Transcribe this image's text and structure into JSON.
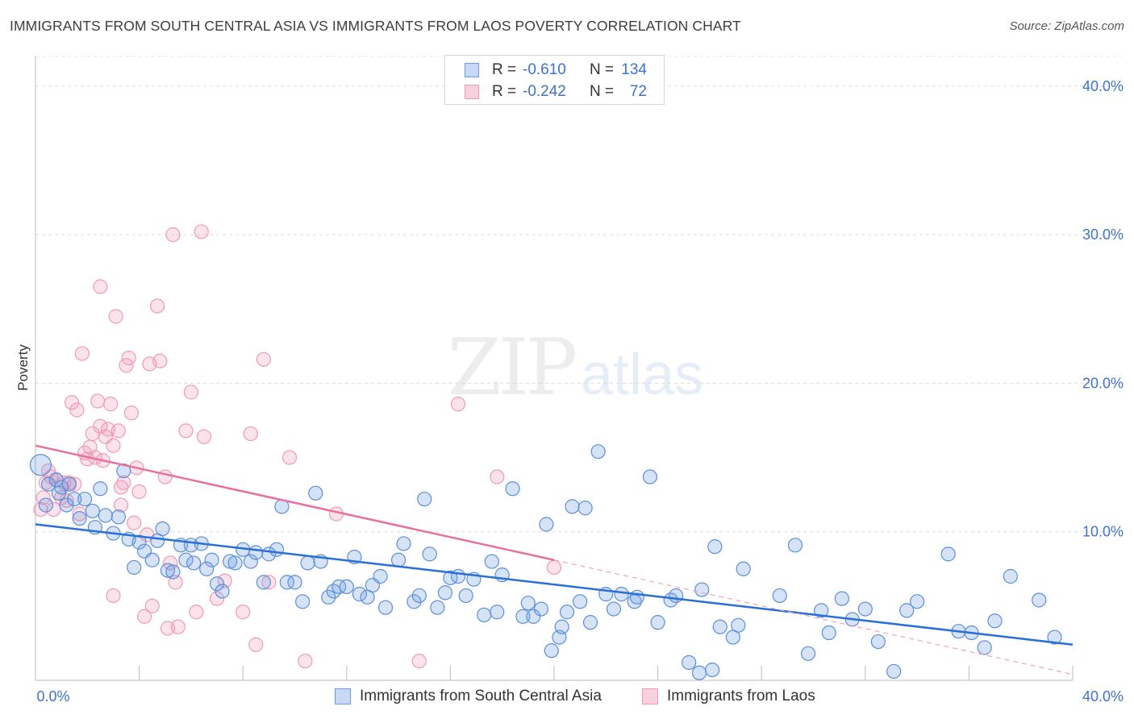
{
  "title": "IMMIGRANTS FROM SOUTH CENTRAL ASIA VS IMMIGRANTS FROM LAOS POVERTY CORRELATION CHART",
  "source": "Source: ZipAtlas.com",
  "watermark": {
    "zip": "ZIP",
    "atlas": "atlas"
  },
  "legend_top": [
    {
      "r_label": "R =",
      "r_value": "-0.610",
      "n_label": "N =",
      "n_value": "134",
      "color": "#6a9be0"
    },
    {
      "r_label": "R =",
      "r_value": "-0.242",
      "n_label": "N =",
      "n_value": "72",
      "color": "#f09ab8"
    }
  ],
  "legend_bottom": [
    {
      "label": "Immigrants from South Central Asia",
      "color": "#6a9be0"
    },
    {
      "label": "Immigrants from Laos",
      "color": "#f09ab8"
    }
  ],
  "chart_data": {
    "type": "scatter",
    "title": "IMMIGRANTS FROM SOUTH CENTRAL ASIA VS IMMIGRANTS FROM LAOS POVERTY CORRELATION CHART",
    "xlabel": "",
    "ylabel": "Poverty",
    "xlim": [
      0,
      40
    ],
    "ylim": [
      0,
      42
    ],
    "x_tick_labels": [
      "0.0%",
      "40.0%"
    ],
    "y_ticks": [
      10,
      20,
      30,
      40
    ],
    "y_tick_labels": [
      "10.0%",
      "20.0%",
      "30.0%",
      "40.0%"
    ],
    "grid": true,
    "legend_position": "top-center",
    "series": [
      {
        "name": "Immigrants from South Central Asia",
        "color": "#6a9be0",
        "trend": {
          "x": [
            0,
            40
          ],
          "y": [
            10.5,
            2.4
          ],
          "style": "solid"
        },
        "points": [
          [
            0.2,
            14.5
          ],
          [
            0.5,
            13.2
          ],
          [
            0.8,
            13.5
          ],
          [
            1.0,
            13.0
          ],
          [
            1.3,
            13.2
          ],
          [
            1.2,
            11.8
          ],
          [
            1.7,
            10.9
          ],
          [
            1.9,
            12.2
          ],
          [
            2.2,
            11.4
          ],
          [
            2.3,
            10.3
          ],
          [
            2.5,
            12.9
          ],
          [
            2.7,
            11.1
          ],
          [
            3.0,
            9.9
          ],
          [
            3.2,
            11.0
          ],
          [
            3.4,
            14.1
          ],
          [
            3.6,
            9.5
          ],
          [
            3.8,
            7.6
          ],
          [
            4.0,
            9.3
          ],
          [
            4.2,
            8.7
          ],
          [
            4.5,
            8.1
          ],
          [
            4.7,
            9.4
          ],
          [
            4.9,
            10.2
          ],
          [
            5.1,
            7.4
          ],
          [
            5.3,
            7.3
          ],
          [
            5.6,
            9.1
          ],
          [
            5.8,
            8.1
          ],
          [
            6.0,
            9.1
          ],
          [
            6.1,
            7.9
          ],
          [
            6.4,
            9.2
          ],
          [
            6.6,
            7.5
          ],
          [
            6.8,
            8.1
          ],
          [
            7.0,
            6.5
          ],
          [
            7.2,
            6.0
          ],
          [
            7.5,
            8.0
          ],
          [
            7.7,
            7.9
          ],
          [
            8.0,
            8.8
          ],
          [
            8.3,
            8.0
          ],
          [
            8.5,
            8.6
          ],
          [
            8.8,
            6.6
          ],
          [
            9.0,
            8.5
          ],
          [
            9.3,
            8.8
          ],
          [
            9.5,
            11.7
          ],
          [
            9.7,
            6.6
          ],
          [
            10.0,
            6.6
          ],
          [
            10.3,
            5.3
          ],
          [
            10.5,
            7.9
          ],
          [
            10.8,
            12.6
          ],
          [
            11.0,
            8.0
          ],
          [
            11.3,
            5.6
          ],
          [
            11.5,
            6.0
          ],
          [
            11.7,
            6.3
          ],
          [
            12.0,
            6.3
          ],
          [
            12.3,
            8.3
          ],
          [
            12.5,
            5.8
          ],
          [
            12.8,
            5.6
          ],
          [
            13.0,
            6.4
          ],
          [
            13.3,
            7.0
          ],
          [
            13.5,
            4.9
          ],
          [
            14.0,
            8.1
          ],
          [
            14.2,
            9.2
          ],
          [
            14.6,
            5.3
          ],
          [
            14.8,
            5.7
          ],
          [
            15.0,
            12.2
          ],
          [
            15.2,
            8.5
          ],
          [
            15.5,
            4.9
          ],
          [
            15.8,
            5.9
          ],
          [
            16.0,
            6.9
          ],
          [
            16.3,
            7.0
          ],
          [
            16.6,
            5.7
          ],
          [
            16.9,
            6.8
          ],
          [
            17.3,
            4.4
          ],
          [
            17.6,
            8.0
          ],
          [
            17.8,
            4.6
          ],
          [
            18.0,
            7.1
          ],
          [
            18.4,
            12.9
          ],
          [
            18.8,
            4.3
          ],
          [
            19.0,
            5.2
          ],
          [
            19.2,
            4.3
          ],
          [
            19.5,
            4.8
          ],
          [
            19.7,
            10.5
          ],
          [
            19.9,
            2.0
          ],
          [
            20.2,
            2.9
          ],
          [
            20.3,
            3.6
          ],
          [
            20.5,
            4.6
          ],
          [
            20.7,
            11.7
          ],
          [
            21.0,
            5.3
          ],
          [
            21.2,
            11.6
          ],
          [
            21.4,
            3.9
          ],
          [
            21.7,
            15.4
          ],
          [
            22.0,
            5.8
          ],
          [
            22.3,
            4.8
          ],
          [
            22.6,
            5.8
          ],
          [
            23.1,
            5.3
          ],
          [
            23.7,
            13.7
          ],
          [
            24.0,
            3.9
          ],
          [
            24.5,
            5.4
          ],
          [
            24.7,
            5.7
          ],
          [
            25.2,
            1.2
          ],
          [
            25.6,
            0.5
          ],
          [
            26.1,
            0.7
          ],
          [
            25.7,
            6.1
          ],
          [
            26.2,
            9.0
          ],
          [
            26.4,
            3.6
          ],
          [
            26.9,
            2.9
          ],
          [
            27.1,
            3.7
          ],
          [
            27.3,
            7.5
          ],
          [
            28.7,
            5.7
          ],
          [
            29.3,
            9.1
          ],
          [
            29.8,
            1.8
          ],
          [
            30.3,
            4.7
          ],
          [
            30.6,
            3.2
          ],
          [
            31.1,
            5.5
          ],
          [
            31.5,
            4.1
          ],
          [
            32.0,
            4.8
          ],
          [
            32.5,
            2.6
          ],
          [
            33.1,
            0.6
          ],
          [
            33.6,
            4.7
          ],
          [
            34.0,
            5.3
          ],
          [
            35.2,
            8.5
          ],
          [
            35.6,
            3.3
          ],
          [
            36.1,
            3.2
          ],
          [
            36.6,
            2.2
          ],
          [
            37.0,
            4.0
          ],
          [
            37.6,
            7.0
          ],
          [
            38.7,
            5.4
          ],
          [
            39.3,
            2.9
          ],
          [
            0.4,
            11.8
          ],
          [
            0.9,
            12.6
          ],
          [
            1.5,
            12.2
          ],
          [
            23.2,
            5.6
          ]
        ]
      },
      {
        "name": "Immigrants from Laos",
        "color": "#f09ab8",
        "trend": {
          "x": [
            0,
            20
          ],
          "y": [
            15.8,
            8.1
          ],
          "style": "solid",
          "extension": {
            "x": [
              20,
              40
            ],
            "y": [
              8.1,
              0.4
            ],
            "style": "dashed"
          }
        },
        "points": [
          [
            0.2,
            11.5
          ],
          [
            0.3,
            12.3
          ],
          [
            0.4,
            13.3
          ],
          [
            0.5,
            14.1
          ],
          [
            0.6,
            13.7
          ],
          [
            0.7,
            11.5
          ],
          [
            0.8,
            13.5
          ],
          [
            1.0,
            12.3
          ],
          [
            1.1,
            13.3
          ],
          [
            1.2,
            12.1
          ],
          [
            1.3,
            13.3
          ],
          [
            1.4,
            18.7
          ],
          [
            1.5,
            13.2
          ],
          [
            1.6,
            18.2
          ],
          [
            1.7,
            11.2
          ],
          [
            1.8,
            22.0
          ],
          [
            1.9,
            15.3
          ],
          [
            2.0,
            14.9
          ],
          [
            2.1,
            15.7
          ],
          [
            2.2,
            16.6
          ],
          [
            2.3,
            15.0
          ],
          [
            2.4,
            18.8
          ],
          [
            2.5,
            17.1
          ],
          [
            2.6,
            14.8
          ],
          [
            2.7,
            16.4
          ],
          [
            2.8,
            16.9
          ],
          [
            2.9,
            18.6
          ],
          [
            3.0,
            15.8
          ],
          [
            3.1,
            24.5
          ],
          [
            3.2,
            16.8
          ],
          [
            3.3,
            11.8
          ],
          [
            3.4,
            13.3
          ],
          [
            3.5,
            21.2
          ],
          [
            3.6,
            21.7
          ],
          [
            3.7,
            18.0
          ],
          [
            3.8,
            10.6
          ],
          [
            3.9,
            14.3
          ],
          [
            4.0,
            12.7
          ],
          [
            4.2,
            4.3
          ],
          [
            4.3,
            9.8
          ],
          [
            4.5,
            5.0
          ],
          [
            4.7,
            25.2
          ],
          [
            4.8,
            21.5
          ],
          [
            5.0,
            13.7
          ],
          [
            5.1,
            3.5
          ],
          [
            5.2,
            7.9
          ],
          [
            5.3,
            30.0
          ],
          [
            5.4,
            6.6
          ],
          [
            5.5,
            3.6
          ],
          [
            5.8,
            16.8
          ],
          [
            6.0,
            19.4
          ],
          [
            6.2,
            4.6
          ],
          [
            6.4,
            30.2
          ],
          [
            6.5,
            16.4
          ],
          [
            7.0,
            5.5
          ],
          [
            7.3,
            6.7
          ],
          [
            8.0,
            4.6
          ],
          [
            8.3,
            16.6
          ],
          [
            8.5,
            2.4
          ],
          [
            8.8,
            21.6
          ],
          [
            9.0,
            6.6
          ],
          [
            9.8,
            15.0
          ],
          [
            10.4,
            1.3
          ],
          [
            11.6,
            11.2
          ],
          [
            14.8,
            1.3
          ],
          [
            16.3,
            18.6
          ],
          [
            17.8,
            13.7
          ],
          [
            20.0,
            7.6
          ],
          [
            3.0,
            5.7
          ],
          [
            2.5,
            26.5
          ],
          [
            4.4,
            21.3
          ],
          [
            3.3,
            13.0
          ]
        ]
      }
    ]
  }
}
